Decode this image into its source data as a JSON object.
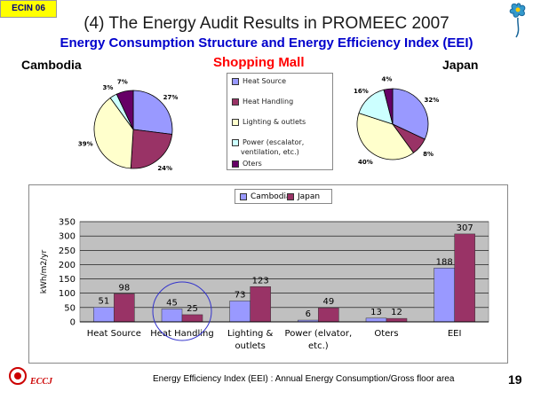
{
  "header": {
    "tag": "ECIN 06",
    "title": "(4) The Energy Audit Results  in PROMEEC 2007",
    "subtitle": "Energy Consumption Structure and Energy Efficiency Index (EEI)",
    "country_left": "Cambodia",
    "country_right": "Japan",
    "facility": "Shopping Mall"
  },
  "colors": {
    "heat_source": "#9999ff",
    "heat_handling": "#993366",
    "lighting": "#ffffcc",
    "power": "#ccffff",
    "oters": "#660066",
    "plot_bg": "#c0c0c0",
    "subtitle": "#0000cc",
    "facility": "#ff0000"
  },
  "pie_legend": {
    "items": [
      {
        "label": "Heat Source",
        "color": "#9999ff"
      },
      {
        "label": "Heat Handling",
        "color": "#993366"
      },
      {
        "label": "Lighting & outlets",
        "color": "#ffffcc"
      },
      {
        "label": "Power (escalator,",
        "label2": "ventilation, etc.)",
        "color": "#ccffff"
      },
      {
        "label": "Oters",
        "color": "#660066"
      }
    ]
  },
  "chart_data": [
    {
      "type": "pie",
      "title": "Cambodia",
      "labels": [
        "Heat Source",
        "Heat Handling",
        "Lighting & outlets",
        "Power (escalator, ventilation, etc.)",
        "Oters"
      ],
      "values": [
        27,
        24,
        39,
        3,
        7
      ],
      "value_labels": [
        "27%",
        "24%",
        "39%",
        "3%",
        "7%"
      ]
    },
    {
      "type": "pie",
      "title": "Japan",
      "labels": [
        "Heat Source",
        "Heat Handling",
        "Lighting & outlets",
        "Power (escalator, ventilation, etc.)",
        "Oters"
      ],
      "values": [
        32,
        8,
        40,
        16,
        4
      ],
      "value_labels": [
        "32%",
        "8%",
        "40%",
        "16%",
        "4%"
      ]
    },
    {
      "type": "bar",
      "categories": [
        "Heat Source",
        "Heat Handling",
        "Lighting &|outlets",
        "Power (elvator,|etc.)",
        "Oters",
        "EEI"
      ],
      "series": [
        {
          "name": "Cambodia",
          "values": [
            51,
            45,
            73,
            6,
            13,
            188
          ],
          "color": "#9999ff"
        },
        {
          "name": "Japan",
          "values": [
            98,
            25,
            123,
            49,
            12,
            307
          ],
          "color": "#993366"
        }
      ],
      "ylabel": "kWh/m2/yr",
      "ylim": [
        0,
        350
      ],
      "yticks": [
        0,
        50,
        100,
        150,
        200,
        250,
        300,
        350
      ],
      "grid": true,
      "legend": "top-center"
    }
  ],
  "footer": {
    "text": "Energy Efficiency Index (EEI) : Annual Energy Consumption/Gross floor area",
    "page": "19",
    "logo": "ECCJ"
  }
}
